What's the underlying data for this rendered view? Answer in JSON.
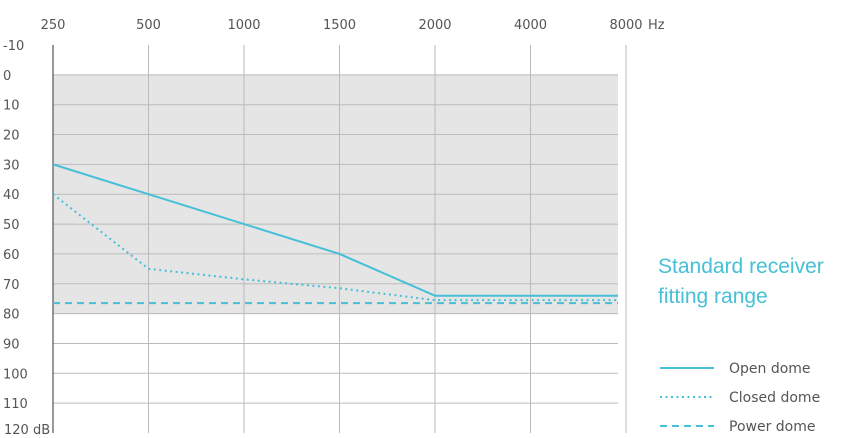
{
  "chart_data": {
    "type": "line",
    "title_lines": [
      "Standard receiver",
      "fitting range"
    ],
    "x_categories": [
      "250",
      "500",
      "1000",
      "1500",
      "2000",
      "4000",
      "8000"
    ],
    "x_unit": "Hz",
    "y_ticks": [
      "-10",
      "0",
      "10",
      "20",
      "30",
      "40",
      "50",
      "60",
      "70",
      "80",
      "90",
      "100",
      "110",
      "120"
    ],
    "y_unit": "dB",
    "ylim": [
      -10,
      120
    ],
    "y_inverted": true,
    "shaded_band_db": [
      0,
      80
    ],
    "series": [
      {
        "name": "Open dome",
        "style": "solid",
        "points": [
          {
            "x": "250",
            "y": 30
          },
          {
            "x": "500",
            "y": 40
          },
          {
            "x": "1000",
            "y": 50
          },
          {
            "x": "1500",
            "y": 60
          },
          {
            "x": "2000",
            "y": 74
          },
          {
            "x": "8000",
            "y": 74
          }
        ]
      },
      {
        "name": "Closed dome",
        "style": "dotted",
        "points": [
          {
            "x": "250",
            "y": 40
          },
          {
            "x": "500",
            "y": 65
          },
          {
            "x": "1000",
            "y": 68.5
          },
          {
            "x": "1500",
            "y": 71.5
          },
          {
            "x": "2000",
            "y": 75.5
          },
          {
            "x": "8000",
            "y": 75.5
          }
        ]
      },
      {
        "name": "Power dome",
        "style": "dashed",
        "points": [
          {
            "x": "250",
            "y": 76.5
          },
          {
            "x": "8000",
            "y": 76.5
          }
        ]
      }
    ],
    "colors": {
      "line": "#45c0d6",
      "band": "#e5e5e5",
      "grid": "#bbbbbb",
      "axis": "#555555"
    }
  }
}
